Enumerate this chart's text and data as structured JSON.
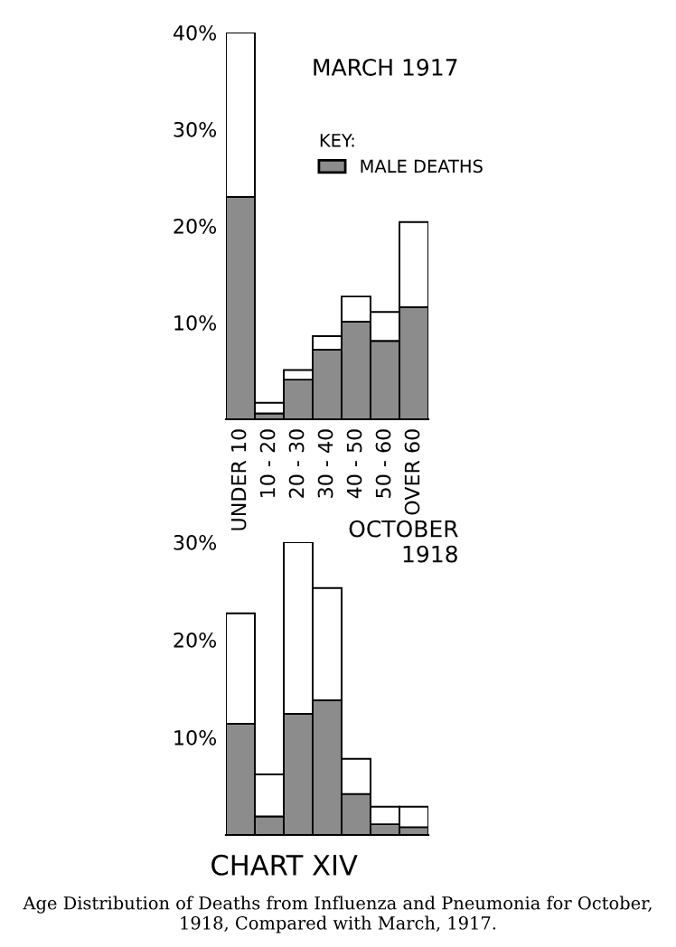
{
  "chart_data": [
    {
      "type": "bar",
      "title": "MARCH 1917",
      "legend_title": "KEY:",
      "legend": "top right",
      "stacked": true,
      "tick_labels": "xy",
      "categories": [
        "UNDER 10",
        "10 - 20",
        "20 - 30",
        "30 - 40",
        "40 - 50",
        "50 - 60",
        "OVER 60"
      ],
      "series": [
        {
          "name": "MALE DEATHS",
          "color": "#8c8c8c",
          "values": [
            23.0,
            0.6,
            4.1,
            7.2,
            10.1,
            8.1,
            11.6
          ]
        },
        {
          "color": "#ffffff",
          "values": [
            17.0,
            1.1,
            1.0,
            1.4,
            2.6,
            3.0,
            8.8
          ]
        }
      ],
      "ylim": [
        0,
        40
      ],
      "yticks": [
        {
          "value": 10,
          "label": "10%"
        },
        {
          "value": 20,
          "label": "20%"
        },
        {
          "value": 30,
          "label": "30%"
        },
        {
          "value": 40,
          "label": "40%"
        }
      ]
    },
    {
      "type": "bar",
      "title": "OCTOBER\n1918",
      "stacked": true,
      "tick_labels": "y",
      "categories": [
        null,
        null,
        null,
        null,
        null,
        null,
        null
      ],
      "series": [
        {
          "color": "#8c8c8c",
          "values": [
            11.4,
            1.9,
            12.4,
            13.8,
            4.2,
            1.1,
            0.8
          ]
        },
        {
          "color": "#ffffff",
          "values": [
            11.3,
            4.3,
            17.6,
            11.5,
            3.6,
            1.8,
            2.1
          ]
        }
      ],
      "ylim": [
        0,
        30
      ],
      "yticks": [
        {
          "value": 10,
          "label": "10%"
        },
        {
          "value": 20,
          "label": "20%"
        },
        {
          "value": 30,
          "label": "30%"
        }
      ],
      "annotations": [
        "CHART XIV",
        "Age Distribution of Deaths from Influenza and Pneumonia for October, 1918, Compared with March, 1917."
      ]
    }
  ]
}
